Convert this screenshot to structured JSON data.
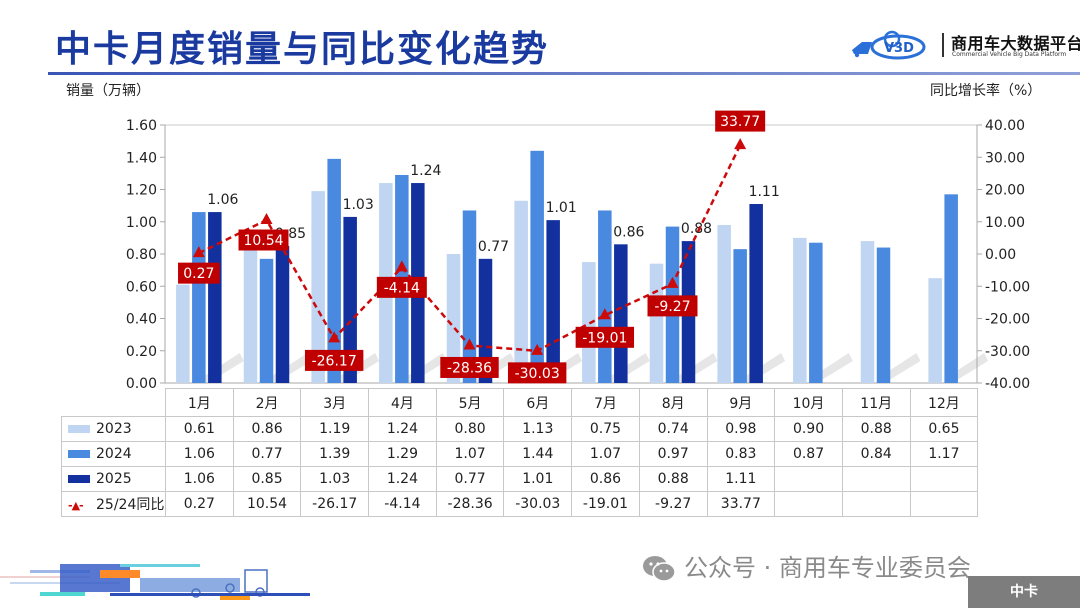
{
  "header": {
    "title": "中卡月度销量与同比变化趋势",
    "logo_cn": "商用车大数据平台",
    "logo_en": "Commercial Vehicle Big Data Platform",
    "logo_mark": "V3D"
  },
  "axes": {
    "left_title": "销量（万辆）",
    "right_title": "同比增长率（%）"
  },
  "colors": {
    "title": "#1a3aa0",
    "s2023": "#c0d5f2",
    "s2024": "#4a89e0",
    "s2025": "#12309e",
    "yoy": "#cc0a0a",
    "label_box": "#c00000"
  },
  "chart_data": {
    "type": "bar",
    "title": "中卡月度销量与同比变化趋势",
    "xlabel": "",
    "ylabel": "销量（万辆）",
    "y2label": "同比增长率（%）",
    "categories": [
      "1月",
      "2月",
      "3月",
      "4月",
      "5月",
      "6月",
      "7月",
      "8月",
      "9月",
      "10月",
      "11月",
      "12月"
    ],
    "ylim": [
      0,
      1.6
    ],
    "yticks": [
      "0.00",
      "0.20",
      "0.40",
      "0.60",
      "0.80",
      "1.00",
      "1.20",
      "1.40",
      "1.60"
    ],
    "y2lim": [
      -40,
      40
    ],
    "y2ticks": [
      "-40.00",
      "-30.00",
      "-20.00",
      "-10.00",
      "0.00",
      "10.00",
      "20.00",
      "30.00",
      "40.00"
    ],
    "grid": false,
    "legend_position": "table-left",
    "series": [
      {
        "name": "2023",
        "type": "bar",
        "axis": "left",
        "values": [
          0.61,
          0.86,
          1.19,
          1.24,
          0.8,
          1.13,
          0.75,
          0.74,
          0.98,
          0.9,
          0.88,
          0.65
        ]
      },
      {
        "name": "2024",
        "type": "bar",
        "axis": "left",
        "values": [
          1.06,
          0.77,
          1.39,
          1.29,
          1.07,
          1.44,
          1.07,
          0.97,
          0.83,
          0.87,
          0.84,
          1.17
        ]
      },
      {
        "name": "2025",
        "type": "bar",
        "axis": "left",
        "values": [
          1.06,
          0.85,
          1.03,
          1.24,
          0.77,
          1.01,
          0.86,
          0.88,
          1.11,
          null,
          null,
          null
        ],
        "data_labels": true
      },
      {
        "name": "25/24同比",
        "type": "line",
        "axis": "right",
        "style": "dashed-triangle",
        "values": [
          0.27,
          10.54,
          -26.17,
          -4.14,
          -28.36,
          -30.03,
          -19.01,
          -9.27,
          33.77,
          null,
          null,
          null
        ],
        "data_labels": true
      }
    ]
  },
  "table": {
    "rows": [
      {
        "label": "2023",
        "cells": [
          "0.61",
          "0.86",
          "1.19",
          "1.24",
          "0.80",
          "1.13",
          "0.75",
          "0.74",
          "0.98",
          "0.90",
          "0.88",
          "0.65"
        ]
      },
      {
        "label": "2024",
        "cells": [
          "1.06",
          "0.77",
          "1.39",
          "1.29",
          "1.07",
          "1.44",
          "1.07",
          "0.97",
          "0.83",
          "0.87",
          "0.84",
          "1.17"
        ]
      },
      {
        "label": "2025",
        "cells": [
          "1.06",
          "0.85",
          "1.03",
          "1.24",
          "0.77",
          "1.01",
          "0.86",
          "0.88",
          "1.11",
          "",
          "",
          ""
        ]
      },
      {
        "label": "25/24同比",
        "cells": [
          "0.27",
          "10.54",
          "-26.17",
          "-4.14",
          "-28.36",
          "-30.03",
          "-19.01",
          "-9.27",
          "33.77",
          "",
          "",
          ""
        ]
      }
    ]
  },
  "footer": {
    "wechat_text": "公众号 · 商用车专业委员会",
    "category_tag": "中卡"
  }
}
